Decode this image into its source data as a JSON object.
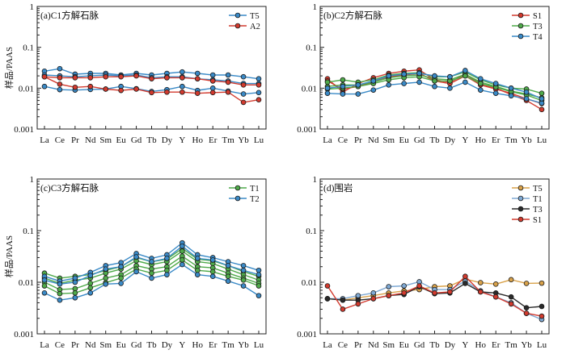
{
  "colors": {
    "blue": "#3a8ac7",
    "red": "#d23a2e",
    "green": "#4faa4a",
    "orange": "#d9a24a",
    "lightblue": "#7fa9d4",
    "black": "#2a2a2a"
  },
  "chart_data": [
    {
      "type": "line",
      "title": "(a)C1方解石脉",
      "ylabel": "样品/PAAS",
      "xlabel": "",
      "yscale": "log",
      "ylim": [
        0.001,
        1
      ],
      "yticks": [
        "0.001",
        "0.01",
        "0.1",
        "1"
      ],
      "categories": [
        "La",
        "Ce",
        "Pr",
        "Nd",
        "Sm",
        "Eu",
        "Gd",
        "Tb",
        "Dy",
        "Y",
        "Ho",
        "Er",
        "Tm",
        "Yb",
        "Lu"
      ],
      "legend_position": "top-right",
      "series": [
        {
          "name": "T5",
          "color": "blue",
          "group": 0,
          "values": [
            0.026,
            0.03,
            0.022,
            0.023,
            0.023,
            0.021,
            0.023,
            0.021,
            0.023,
            0.025,
            0.023,
            0.021,
            0.021,
            0.019,
            0.017
          ]
        },
        {
          "name": "",
          "color": "blue",
          "group": 0,
          "values": [
            0.021,
            0.02,
            0.019,
            0.02,
            0.021,
            0.02,
            0.021,
            0.018,
            0.019,
            0.019,
            0.017,
            0.016,
            0.015,
            0.013,
            0.013
          ]
        },
        {
          "name": "",
          "color": "blue",
          "group": 0,
          "values": [
            0.011,
            0.0092,
            0.009,
            0.0093,
            0.0095,
            0.011,
            0.0097,
            0.0083,
            0.0092,
            0.011,
            0.0088,
            0.01,
            0.0085,
            0.0072,
            0.0078
          ]
        },
        {
          "name": "A2",
          "color": "red",
          "group": 1,
          "values": [
            0.019,
            0.0125,
            0.0105,
            0.011,
            0.0095,
            0.0088,
            0.0095,
            0.0078,
            0.008,
            0.008,
            0.0075,
            0.0078,
            0.008,
            0.0045,
            0.0052
          ]
        },
        {
          "name": "",
          "color": "red",
          "group": 1,
          "values": [
            0.019,
            0.018,
            0.018,
            0.018,
            0.019,
            0.019,
            0.02,
            0.017,
            0.018,
            0.018,
            0.017,
            0.015,
            0.014,
            0.012,
            0.012
          ]
        }
      ]
    },
    {
      "type": "line",
      "title": "(b)C2方解石脉",
      "ylabel": "",
      "xlabel": "",
      "yscale": "log",
      "ylim": [
        0.001,
        1
      ],
      "yticks": [
        "0.001",
        "0.01",
        "0.1",
        "1"
      ],
      "categories": [
        "La",
        "Ce",
        "Pr",
        "Nd",
        "Sm",
        "Eu",
        "Gd",
        "Tb",
        "Dy",
        "Y",
        "Ho",
        "Er",
        "Tm",
        "Yb",
        "Lu"
      ],
      "legend_position": "top-right",
      "series": [
        {
          "name": "S1",
          "color": "red",
          "group": 0,
          "values": [
            0.017,
            0.008,
            0.013,
            0.018,
            0.023,
            0.026,
            0.028,
            0.016,
            0.014,
            0.022,
            0.013,
            0.01,
            0.007,
            0.005,
            0.003
          ]
        },
        {
          "name": "",
          "color": "red",
          "group": 0,
          "values": [
            0.015,
            0.0095,
            0.011,
            0.014,
            0.019,
            0.021,
            0.023,
            0.015,
            0.013,
            0.02,
            0.012,
            0.0095,
            0.0075,
            0.0055,
            0.0042
          ]
        },
        {
          "name": "T3",
          "color": "green",
          "group": 1,
          "values": [
            0.014,
            0.016,
            0.014,
            0.016,
            0.021,
            0.023,
            0.024,
            0.019,
            0.019,
            0.025,
            0.016,
            0.012,
            0.01,
            0.0095,
            0.0075
          ]
        },
        {
          "name": "",
          "color": "green",
          "group": 1,
          "values": [
            0.011,
            0.012,
            0.012,
            0.014,
            0.018,
            0.02,
            0.021,
            0.017,
            0.016,
            0.022,
            0.014,
            0.011,
            0.0085,
            0.0072,
            0.0058
          ]
        },
        {
          "name": "",
          "color": "green",
          "group": 1,
          "values": [
            0.0095,
            0.01,
            0.011,
            0.013,
            0.016,
            0.018,
            0.019,
            0.015,
            0.015,
            0.02,
            0.013,
            0.0105,
            0.0082,
            0.0068,
            0.005
          ]
        },
        {
          "name": "T4",
          "color": "blue",
          "group": 2,
          "values": [
            0.0075,
            0.0072,
            0.0072,
            0.009,
            0.012,
            0.013,
            0.014,
            0.011,
            0.01,
            0.014,
            0.009,
            0.0075,
            0.0065,
            0.0055,
            0.0043
          ]
        },
        {
          "name": "",
          "color": "blue",
          "group": 2,
          "values": [
            0.01,
            0.011,
            0.012,
            0.015,
            0.02,
            0.022,
            0.023,
            0.02,
            0.019,
            0.027,
            0.017,
            0.013,
            0.01,
            0.008,
            0.0055
          ]
        }
      ]
    },
    {
      "type": "line",
      "title": "(c)C3方解石脉",
      "ylabel": "样品/PAAS",
      "xlabel": "",
      "yscale": "log",
      "ylim": [
        0.001,
        1
      ],
      "yticks": [
        "0.001",
        "0.01",
        "0.1",
        "1"
      ],
      "categories": [
        "La",
        "Ce",
        "Pr",
        "Nd",
        "Sm",
        "Eu",
        "Gd",
        "Tb",
        "Dy",
        "Y",
        "Ho",
        "Er",
        "Tm",
        "Yb",
        "Lu"
      ],
      "legend_position": "top-right",
      "series": [
        {
          "name": "T1",
          "color": "green",
          "group": 0,
          "values": [
            0.015,
            0.012,
            0.013,
            0.014,
            0.017,
            0.02,
            0.03,
            0.025,
            0.028,
            0.045,
            0.028,
            0.026,
            0.021,
            0.016,
            0.013
          ]
        },
        {
          "name": "",
          "color": "green",
          "group": 0,
          "values": [
            0.012,
            0.0095,
            0.011,
            0.012,
            0.015,
            0.018,
            0.026,
            0.022,
            0.025,
            0.04,
            0.025,
            0.023,
            0.018,
            0.014,
            0.011
          ]
        },
        {
          "name": "",
          "color": "green",
          "group": 0,
          "values": [
            0.01,
            0.0072,
            0.0075,
            0.0095,
            0.012,
            0.014,
            0.021,
            0.018,
            0.02,
            0.032,
            0.02,
            0.019,
            0.015,
            0.012,
            0.0095
          ]
        },
        {
          "name": "",
          "color": "green",
          "group": 0,
          "values": [
            0.0085,
            0.006,
            0.0062,
            0.0078,
            0.0098,
            0.012,
            0.018,
            0.015,
            0.017,
            0.027,
            0.017,
            0.016,
            0.013,
            0.011,
            0.0085
          ]
        },
        {
          "name": "T2",
          "color": "blue",
          "group": 1,
          "values": [
            0.013,
            0.0105,
            0.012,
            0.0155,
            0.021,
            0.024,
            0.036,
            0.029,
            0.034,
            0.058,
            0.034,
            0.03,
            0.025,
            0.021,
            0.017
          ]
        },
        {
          "name": "",
          "color": "blue",
          "group": 1,
          "values": [
            0.011,
            0.0092,
            0.01,
            0.0135,
            0.018,
            0.02,
            0.031,
            0.025,
            0.029,
            0.05,
            0.029,
            0.027,
            0.021,
            0.017,
            0.014
          ]
        },
        {
          "name": "",
          "color": "blue",
          "group": 1,
          "values": [
            0.0062,
            0.0045,
            0.005,
            0.0062,
            0.0092,
            0.0095,
            0.016,
            0.012,
            0.014,
            0.022,
            0.014,
            0.013,
            0.0105,
            0.0085,
            0.0055
          ]
        }
      ]
    },
    {
      "type": "line",
      "title": "(d)围岩",
      "ylabel": "",
      "xlabel": "",
      "yscale": "log",
      "ylim": [
        0.001,
        1
      ],
      "yticks": [
        "0.001",
        "0.01",
        "0.1",
        "1"
      ],
      "categories": [
        "La",
        "Ce",
        "Pr",
        "Nd",
        "Sm",
        "Eu",
        "Gd",
        "Tb",
        "Dy",
        "Y",
        "Ho",
        "Er",
        "Tm",
        "Yb",
        "Lu"
      ],
      "legend_position": "top-right",
      "series": [
        {
          "name": "T5",
          "color": "orange",
          "group": 0,
          "values": [
            0.0048,
            0.0045,
            0.005,
            0.0055,
            0.0062,
            0.0068,
            0.0072,
            0.0082,
            0.0085,
            0.0115,
            0.0098,
            0.0092,
            0.0112,
            0.0095,
            0.0096
          ]
        },
        {
          "name": "T1",
          "color": "lightblue",
          "group": 1,
          "values": [
            0.0048,
            0.0048,
            0.0055,
            0.0062,
            0.0082,
            0.0085,
            0.0102,
            0.0072,
            0.0072,
            0.0105,
            0.0068,
            0.0052,
            0.004,
            0.0025,
            0.0019
          ]
        },
        {
          "name": "T3",
          "color": "black",
          "group": 2,
          "values": [
            0.0048,
            0.0045,
            0.0045,
            0.0048,
            0.0055,
            0.0058,
            0.0082,
            0.006,
            0.0062,
            0.0095,
            0.0065,
            0.0062,
            0.0052,
            0.0032,
            0.0034
          ]
        },
        {
          "name": "S1",
          "color": "red",
          "group": 3,
          "values": [
            0.0085,
            0.003,
            0.0038,
            0.0048,
            0.0055,
            0.0062,
            0.0085,
            0.0062,
            0.0065,
            0.013,
            0.0065,
            0.0052,
            0.0038,
            0.0025,
            0.0022
          ]
        }
      ]
    }
  ]
}
